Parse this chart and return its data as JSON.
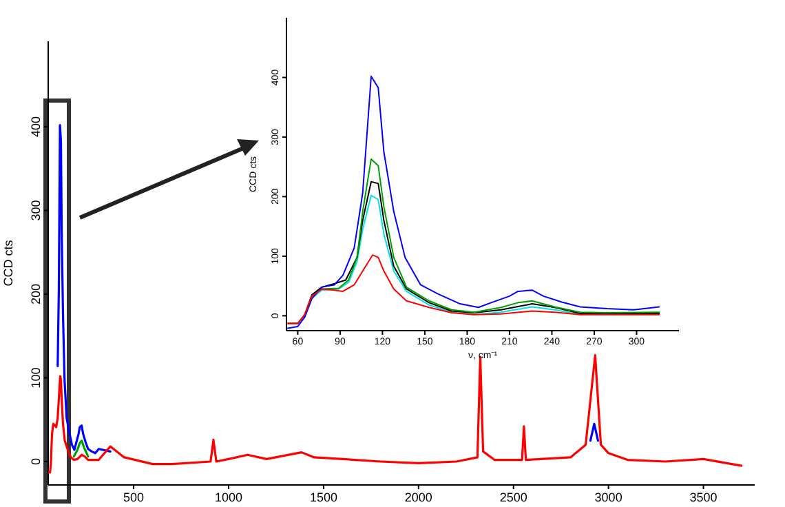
{
  "chart_data": [
    {
      "type": "line",
      "ylabel": "CCD cts",
      "xlim": [
        50,
        3770
      ],
      "ylim": [
        -28,
        502
      ],
      "xticks": [
        500,
        1000,
        1500,
        2000,
        2500,
        3000,
        3500
      ],
      "yticks": [
        0,
        100,
        200,
        300,
        400
      ],
      "grid": false,
      "marker": "none",
      "line_style": "solid",
      "series": [
        {
          "color": "#00a000",
          "x": [
            185,
            204,
            216,
            226,
            242,
            260
          ],
          "values": [
            6,
            14,
            22,
            25,
            15,
            6
          ]
        },
        {
          "color": "#0000ff",
          "x": [
            100,
            106,
            112,
            117,
            121,
            128,
            136,
            147,
            159,
            175,
            188,
            197,
            210,
            216,
            226,
            234,
            247,
            260,
            279,
            298,
            316,
            377,
            1000,
            2905,
            2925,
            2945
          ],
          "values": [
            114,
            206,
            402,
            383,
            275,
            175,
            98,
            52,
            37,
            20,
            14,
            22,
            33,
            41,
            43,
            33,
            23,
            15,
            12,
            10,
            15,
            12,
            null,
            25,
            45,
            25
          ]
        },
        {
          "color": "#ff0000",
          "x": [
            53,
            60,
            65,
            70,
            77,
            86,
            92,
            100,
            106,
            113,
            117,
            121,
            128,
            137,
            153,
            169,
            185,
            204,
            226,
            242,
            260,
            316,
            377,
            450,
            600,
            700,
            905,
            920,
            935,
            1000,
            1100,
            1200,
            1384,
            1450,
            1600,
            1800,
            2000,
            2200,
            2310,
            2325,
            2340,
            2400,
            2545,
            2555,
            2565,
            2800,
            2880,
            2930,
            2960,
            3000,
            3100,
            3300,
            3500,
            3700
          ],
          "values": [
            -13,
            -13,
            2,
            33,
            45,
            43,
            41,
            52,
            75,
            102,
            98,
            75,
            45,
            25,
            14,
            5,
            2,
            3,
            8,
            6,
            2,
            2,
            18,
            5,
            -3,
            -3,
            0,
            26,
            0,
            3,
            8,
            3,
            11,
            5,
            3,
            0,
            -2,
            0,
            5,
            125,
            12,
            2,
            2,
            42,
            2,
            5,
            20,
            127,
            20,
            10,
            2,
            0,
            3,
            -5
          ]
        }
      ]
    },
    {
      "type": "line",
      "xlabel": "ν, cm⁻¹",
      "ylabel": "CCD cts",
      "xlim": [
        52,
        330
      ],
      "ylim": [
        -25,
        500
      ],
      "xticks": [
        60,
        90,
        120,
        150,
        180,
        210,
        240,
        270,
        300
      ],
      "yticks": [
        0,
        100,
        200,
        300,
        400
      ],
      "grid": false,
      "marker": "none",
      "line_style": "solid",
      "series": [
        {
          "color": "#00e0e0",
          "x": [
            65,
            70,
            77,
            89,
            96,
            102,
            106,
            112,
            117,
            121,
            128,
            137,
            153,
            169,
            185,
            204,
            226,
            242,
            260,
            316
          ],
          "values": [
            -2,
            29,
            43,
            45,
            56,
            91,
            145,
            202,
            195,
            137,
            75,
            41,
            18,
            6,
            2,
            6,
            15,
            10,
            2,
            2
          ]
        },
        {
          "color": "#000000",
          "x": [
            53,
            60,
            65,
            70,
            77,
            86,
            94,
            102,
            106,
            112,
            117,
            121,
            128,
            137,
            153,
            169,
            185,
            204,
            226,
            242,
            260,
            316
          ],
          "values": [
            -13,
            -13,
            2,
            35,
            48,
            54,
            60,
            98,
            160,
            225,
            222,
            160,
            83,
            45,
            22,
            8,
            5,
            10,
            20,
            14,
            4,
            4
          ]
        },
        {
          "color": "#00a000",
          "x": [
            70,
            77,
            89,
            96,
            102,
            106,
            112,
            117,
            121,
            128,
            137,
            153,
            169,
            185,
            204,
            216,
            226,
            242,
            260,
            279,
            316
          ],
          "values": [
            33,
            45,
            46,
            60,
            98,
            175,
            263,
            252,
            183,
            98,
            48,
            25,
            10,
            6,
            14,
            22,
            25,
            15,
            6,
            5,
            6
          ]
        },
        {
          "color": "#0000ff",
          "x": [
            53,
            60,
            65,
            70,
            77,
            86,
            92,
            100,
            106,
            112,
            117,
            121,
            128,
            136,
            147,
            159,
            175,
            188,
            197,
            210,
            216,
            226,
            234,
            247,
            260,
            279,
            298,
            316
          ],
          "values": [
            -21,
            -18,
            -2,
            29,
            48,
            52,
            68,
            114,
            206,
            402,
            383,
            275,
            175,
            98,
            52,
            37,
            20,
            14,
            22,
            33,
            41,
            43,
            33,
            23,
            15,
            12,
            10,
            15
          ]
        },
        {
          "color": "#ff0000",
          "x": [
            53,
            60,
            65,
            70,
            77,
            86,
            92,
            100,
            106,
            113,
            117,
            121,
            128,
            137,
            153,
            169,
            185,
            204,
            226,
            242,
            260,
            316
          ],
          "values": [
            -13,
            -13,
            2,
            33,
            45,
            43,
            41,
            52,
            75,
            102,
            98,
            75,
            45,
            25,
            14,
            5,
            2,
            3,
            8,
            6,
            2,
            2
          ]
        }
      ]
    }
  ]
}
